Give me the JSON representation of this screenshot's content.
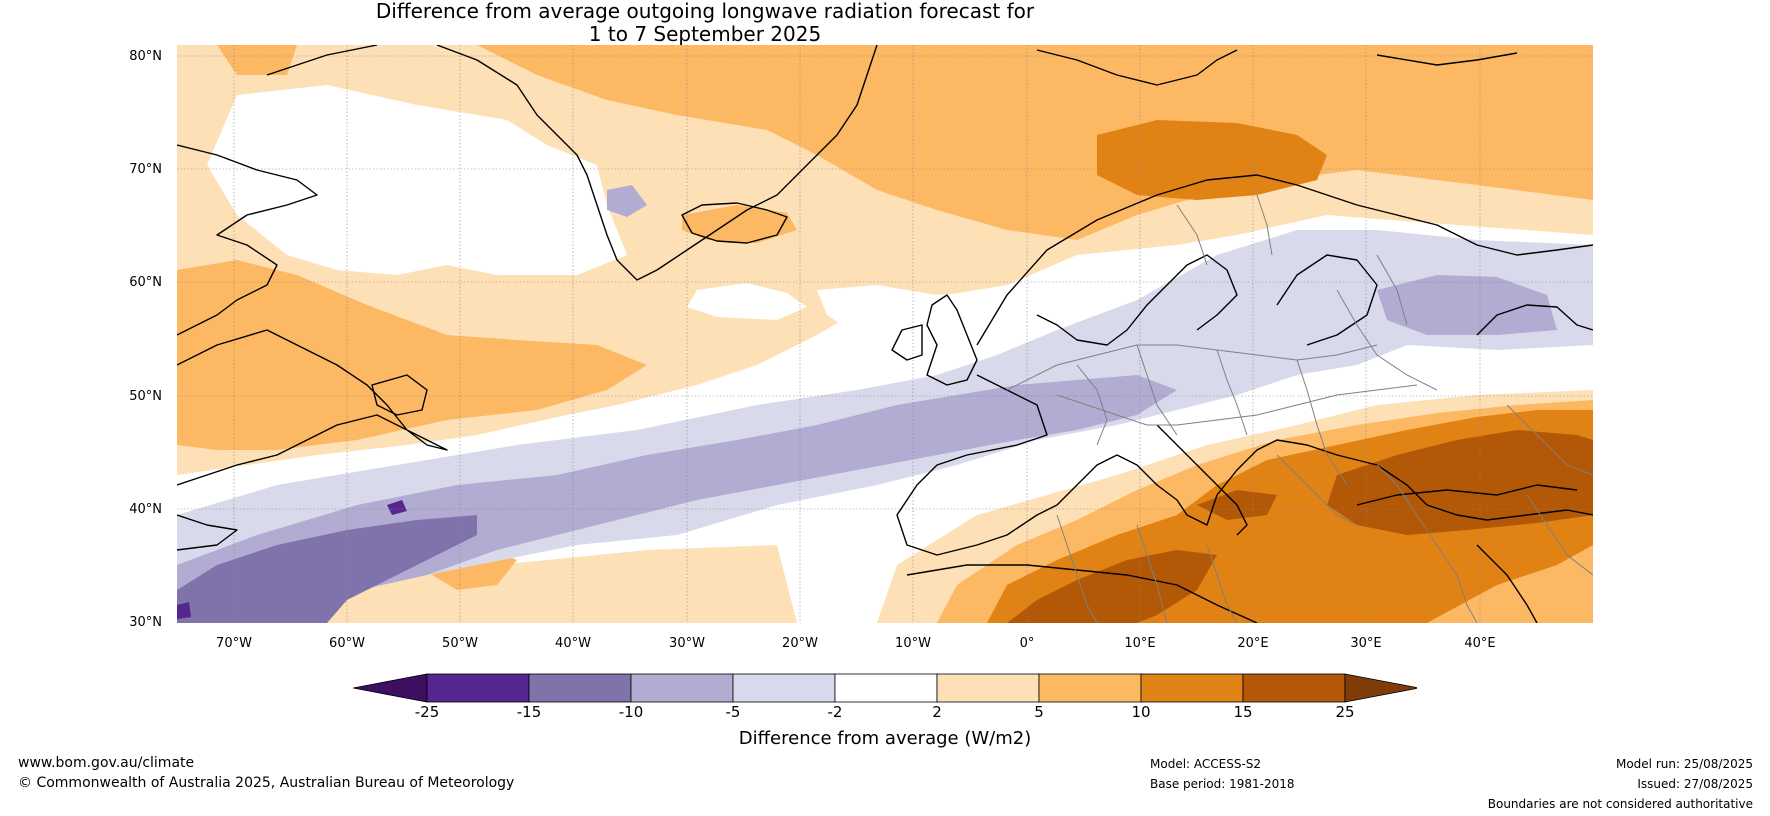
{
  "title": {
    "line1": "Difference from average outgoing longwave radiation forecast for",
    "line2": "1 to 7 September 2025"
  },
  "map": {
    "lat_labels": [
      "80°N",
      "70°N",
      "60°N",
      "50°N",
      "40°N",
      "30°N"
    ],
    "lon_labels": [
      "70°W",
      "60°W",
      "50°W",
      "40°W",
      "30°W",
      "20°W",
      "10°W",
      "0°",
      "10°E",
      "20°E",
      "30°E",
      "40°E"
    ],
    "extent": {
      "lon_min": -75,
      "lon_max": 50,
      "lat_min": 30,
      "lat_max": 81
    },
    "ocean_color": "#ffffff",
    "coastline_color": "#000000",
    "border_color": "#808080"
  },
  "legend": {
    "ticks": [
      "-25",
      "-15",
      "-10",
      "-5",
      "-2",
      "2",
      "5",
      "10",
      "15",
      "25"
    ],
    "colors": {
      "below_min": "#3f0e61",
      "bins": [
        "#54278f",
        "#8073ac",
        "#b2abd2",
        "#d8daeb",
        "#ffffff",
        "#fee0b6",
        "#fdb863",
        "#e08214",
        "#b35806"
      ],
      "above_max": "#7f3b08"
    },
    "label": "Difference from average (W/m2)"
  },
  "footer": {
    "website": "www.bom.gov.au/climate",
    "copyright": "© Commonwealth of Australia 2025, Australian Bureau of Meteorology",
    "model": "Model: ACCESS-S2",
    "base_period": "Base period: 1981-2018",
    "model_run": "Model run: 25/08/2025",
    "issued": "Issued: 27/08/2025",
    "disclaimer": "Boundaries are not considered authoritative"
  }
}
